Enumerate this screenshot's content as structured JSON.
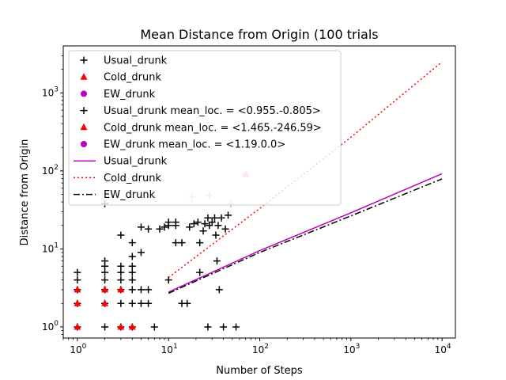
{
  "chart_data": {
    "type": "scatter",
    "title": "Mean Distance from Origin (100 trials",
    "xlabel": "Number of Steps",
    "ylabel": "Distance from Origin",
    "xscale": "log",
    "yscale": "log",
    "xlim": [
      0.7,
      14000
    ],
    "ylim": [
      0.72,
      4000
    ],
    "grid": false,
    "legend_position": "top-left",
    "xticks": [
      {
        "value": 1,
        "base": "10",
        "exp": "0"
      },
      {
        "value": 10,
        "base": "10",
        "exp": "1"
      },
      {
        "value": 100,
        "base": "10",
        "exp": "2"
      },
      {
        "value": 1000,
        "base": "10",
        "exp": "3"
      },
      {
        "value": 10000,
        "base": "10",
        "exp": "4"
      }
    ],
    "yticks": [
      {
        "value": 1,
        "base": "10",
        "exp": "0"
      },
      {
        "value": 10,
        "base": "10",
        "exp": "1"
      },
      {
        "value": 100,
        "base": "10",
        "exp": "2"
      },
      {
        "value": 1000,
        "base": "10",
        "exp": "3"
      }
    ],
    "scatter_series": [
      {
        "name": "Usual_drunk",
        "marker": "plus",
        "color": "#000000",
        "points": [
          [
            1,
            1
          ],
          [
            1,
            2
          ],
          [
            1,
            3
          ],
          [
            1,
            4
          ],
          [
            1,
            5
          ],
          [
            2,
            1
          ],
          [
            2,
            2
          ],
          [
            2,
            3
          ],
          [
            2,
            4
          ],
          [
            2,
            5
          ],
          [
            2,
            6
          ],
          [
            2,
            7
          ],
          [
            2,
            38
          ],
          [
            3,
            1
          ],
          [
            3,
            2
          ],
          [
            3,
            3
          ],
          [
            3,
            4
          ],
          [
            3,
            5
          ],
          [
            3,
            6
          ],
          [
            3,
            15
          ],
          [
            4,
            1
          ],
          [
            4,
            2
          ],
          [
            4,
            3
          ],
          [
            4,
            4
          ],
          [
            4,
            5
          ],
          [
            4,
            6
          ],
          [
            4,
            8
          ],
          [
            4,
            12
          ],
          [
            5,
            2
          ],
          [
            5,
            3
          ],
          [
            5,
            9
          ],
          [
            5,
            19
          ],
          [
            6,
            2
          ],
          [
            6,
            3
          ],
          [
            6,
            18
          ],
          [
            7,
            1
          ],
          [
            8,
            18
          ],
          [
            9,
            19
          ],
          [
            10,
            4
          ],
          [
            10,
            20
          ],
          [
            10,
            22
          ],
          [
            12,
            12
          ],
          [
            12,
            20
          ],
          [
            12,
            22
          ],
          [
            14,
            2
          ],
          [
            14,
            12
          ],
          [
            16,
            2
          ],
          [
            17,
            19
          ],
          [
            19,
            21
          ],
          [
            21,
            22
          ],
          [
            22,
            5
          ],
          [
            22,
            12
          ],
          [
            24,
            17
          ],
          [
            25,
            21
          ],
          [
            27,
            1
          ],
          [
            27,
            25
          ],
          [
            28,
            20
          ],
          [
            30,
            22
          ],
          [
            32,
            25
          ],
          [
            33,
            15
          ],
          [
            34,
            7
          ],
          [
            35,
            20
          ],
          [
            36,
            3
          ],
          [
            38,
            25
          ],
          [
            40,
            1
          ],
          [
            42,
            18
          ],
          [
            45,
            27
          ],
          [
            55,
            1
          ]
        ]
      },
      {
        "name": "Cold_drunk",
        "marker": "triangle",
        "color": "#ff0000",
        "points": [
          [
            1,
            1
          ],
          [
            1,
            2
          ],
          [
            1,
            3
          ],
          [
            2,
            2
          ],
          [
            2,
            3
          ],
          [
            3,
            1
          ],
          [
            3,
            3
          ],
          [
            4,
            1
          ]
        ]
      },
      {
        "name": "EW_drunk",
        "marker": "circle",
        "color": "#bf00bf",
        "points": []
      }
    ],
    "faded_mean_points": [
      {
        "name": "Usual_drunk mean_loc. = <0.955.-0.805>",
        "marker": "plus",
        "color": "#000000",
        "x": 18,
        "y": 47
      },
      {
        "name": "Usual_drunk mean_loc. = <0.955.-0.805>",
        "marker": "plus",
        "color": "#000000",
        "x": 28,
        "y": 48
      },
      {
        "name": "Usual_drunk mean_loc. = <0.955.-0.805>",
        "marker": "plus",
        "color": "#000000",
        "x": 48,
        "y": 38
      },
      {
        "name": "Cold_drunk mean_loc. = <1.465.-246.59>",
        "marker": "triangle",
        "color": "#ff0000",
        "x": 70,
        "y": 90
      },
      {
        "name": "EW_drunk mean_loc. = <1.19.0.0>",
        "marker": "circle",
        "color": "#bf00bf",
        "x": 70,
        "y": 90
      }
    ],
    "series": [
      {
        "name": "Usual_drunk",
        "style": "solid",
        "color": "#bf00bf",
        "x": [
          10,
          100,
          1000,
          10000
        ],
        "y": [
          2.8,
          9.5,
          29,
          92
        ]
      },
      {
        "name": "Cold_drunk",
        "style": "dotted",
        "color": "#ff0000",
        "x": [
          10,
          100,
          1000,
          10000
        ],
        "y": [
          4.3,
          33,
          270,
          2500
        ]
      },
      {
        "name": "EW_drunk",
        "style": "dashdot",
        "color": "#000000",
        "x": [
          10,
          100,
          1000,
          10000
        ],
        "y": [
          2.7,
          9.0,
          26.5,
          79
        ]
      }
    ],
    "legend": [
      {
        "label": "Usual_drunk",
        "kind": "marker",
        "marker": "plus",
        "color": "#000000"
      },
      {
        "label": "Cold_drunk",
        "kind": "marker",
        "marker": "triangle",
        "color": "#ff0000"
      },
      {
        "label": "EW_drunk",
        "kind": "marker",
        "marker": "circle",
        "color": "#bf00bf"
      },
      {
        "label": "Usual_drunk mean_loc. = <0.955.-0.805>",
        "kind": "marker",
        "marker": "plus",
        "color": "#000000"
      },
      {
        "label": "Cold_drunk mean_loc. = <1.465.-246.59>",
        "kind": "marker",
        "marker": "triangle",
        "color": "#ff0000"
      },
      {
        "label": "EW_drunk mean_loc. = <1.19.0.0>",
        "kind": "marker",
        "marker": "circle",
        "color": "#bf00bf"
      },
      {
        "label": "Usual_drunk",
        "kind": "line",
        "style": "solid",
        "color": "#bf00bf"
      },
      {
        "label": "Cold_drunk",
        "kind": "line",
        "style": "dotted",
        "color": "#ff0000"
      },
      {
        "label": "EW_drunk",
        "kind": "line",
        "style": "dashdot",
        "color": "#000000"
      }
    ]
  }
}
